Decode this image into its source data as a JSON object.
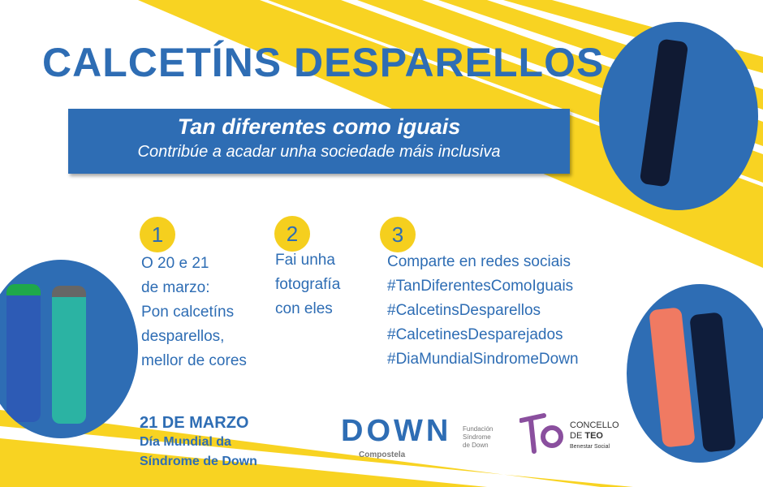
{
  "title": "CALCETÍNS DESPARELLOS",
  "banner": {
    "headline": "Tan diferentes como iguais",
    "subline": "Contribúe a acadar unha sociedade máis inclusiva"
  },
  "steps": [
    {
      "number": "1",
      "lines": [
        "O 20 e 21",
        "de marzo:",
        "Pon calcetíns",
        "desparellos,",
        "mellor de cores"
      ]
    },
    {
      "number": "2",
      "lines": [
        "Fai unha",
        "fotografía",
        "con eles"
      ]
    },
    {
      "number": "3",
      "lines": [
        "Comparte en redes sociais",
        "#TanDiferentesComoIguais",
        "#CalcetinsDesparellos",
        "#CalcetinesDesparejados",
        "#DiaMundialSindromeDown"
      ]
    }
  ],
  "date": {
    "day": "21 DE MARZO",
    "line1": "Día Mundial da",
    "line2": "Síndrome de Down"
  },
  "logos": {
    "down": {
      "text": "DOWN",
      "sub": "Compostela",
      "org": [
        "Fundación",
        "Síndrome",
        "de Down"
      ]
    },
    "teo": {
      "line1": "CONCELLO",
      "line2_prefix": "DE ",
      "line2_bold": "TEO",
      "line3": "Benestar Social"
    }
  },
  "colors": {
    "blue": "#2e6db4",
    "yellow": "#f5cf1e",
    "purple": "#8a4f9e"
  }
}
